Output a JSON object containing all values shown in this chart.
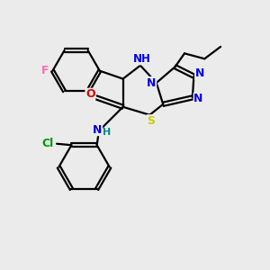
{
  "background_color": "#ebebeb",
  "atom_colors": {
    "N": "#0000ee",
    "O": "#dd0000",
    "S": "#cccc00",
    "F": "#ff69b4",
    "Cl": "#009900",
    "C": "#000000",
    "H": "#008888"
  },
  "bond_color": "#000000",
  "figsize": [
    3.0,
    3.0
  ],
  "dpi": 100
}
